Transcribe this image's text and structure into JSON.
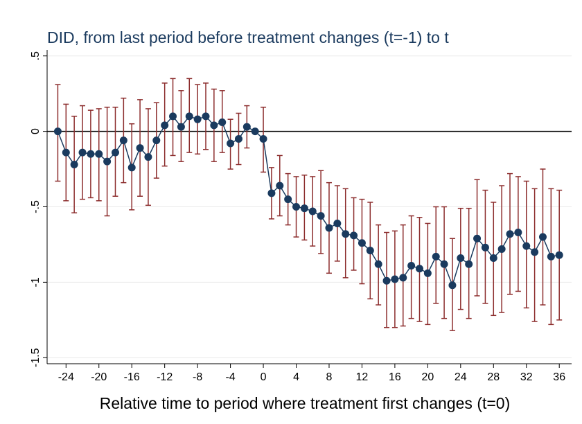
{
  "chart_data": {
    "type": "errorbar-line",
    "title": "DID, from last period before treatment changes (t=-1) to t",
    "x_label": "Relative time to period where treatment first changes (t=0)",
    "x": [
      -25,
      -24,
      -23,
      -22,
      -21,
      -20,
      -19,
      -18,
      -17,
      -16,
      -15,
      -14,
      -13,
      -12,
      -11,
      -10,
      -9,
      -8,
      -7,
      -6,
      -5,
      -4,
      -3,
      -2,
      -1,
      0,
      1,
      2,
      3,
      4,
      5,
      6,
      7,
      8,
      9,
      10,
      11,
      12,
      13,
      14,
      15,
      16,
      17,
      18,
      19,
      20,
      21,
      22,
      23,
      24,
      25,
      26,
      27,
      28,
      29,
      30,
      31,
      32,
      33,
      34,
      35,
      36
    ],
    "values": [
      0,
      -0.14,
      -0.22,
      -0.14,
      -0.15,
      -0.15,
      -0.2,
      -0.14,
      -0.06,
      -0.24,
      -0.11,
      -0.17,
      -0.06,
      0.04,
      0.1,
      0.03,
      0.1,
      0.08,
      0.1,
      0.04,
      0.06,
      -0.08,
      -0.05,
      0.03,
      0,
      -0.05,
      -0.41,
      -0.36,
      -0.45,
      -0.5,
      -0.51,
      -0.53,
      -0.56,
      -0.64,
      -0.61,
      -0.68,
      -0.69,
      -0.74,
      -0.79,
      -0.88,
      -0.99,
      -0.98,
      -0.97,
      -0.89,
      -0.91,
      -0.94,
      -0.83,
      -0.88,
      -1.02,
      -0.84,
      -0.88,
      -0.71,
      -0.77,
      -0.84,
      -0.78,
      -0.68,
      -0.67,
      -0.76,
      -0.8,
      -0.7,
      -0.83,
      -0.82
    ],
    "ci_low": [
      -0.33,
      -0.46,
      -0.54,
      -0.45,
      -0.44,
      -0.46,
      -0.56,
      -0.43,
      -0.34,
      -0.52,
      -0.43,
      -0.49,
      -0.31,
      -0.23,
      -0.16,
      -0.2,
      -0.14,
      -0.15,
      -0.12,
      -0.2,
      -0.14,
      -0.25,
      -0.22,
      -0.11,
      null,
      -0.27,
      -0.58,
      -0.56,
      -0.62,
      -0.7,
      -0.72,
      -0.76,
      -0.81,
      -0.94,
      -0.86,
      -0.97,
      -0.92,
      -1.01,
      -1.11,
      -1.15,
      -1.3,
      -1.3,
      -1.29,
      -1.24,
      -1.26,
      -1.28,
      -1.14,
      -1.24,
      -1.32,
      -1.18,
      -1.24,
      -1.09,
      -1.14,
      -1.22,
      -1.2,
      -1.08,
      -1.06,
      -1.17,
      -1.26,
      -1.15,
      -1.28,
      -1.25
    ],
    "ci_high": [
      0.31,
      0.18,
      0.1,
      0.17,
      0.14,
      0.15,
      0.16,
      0.16,
      0.22,
      0.05,
      0.21,
      0.15,
      0.19,
      0.32,
      0.35,
      0.27,
      0.35,
      0.31,
      0.32,
      0.28,
      0.27,
      0.08,
      0.12,
      0.17,
      null,
      0.16,
      -0.24,
      -0.16,
      -0.28,
      -0.3,
      -0.29,
      -0.3,
      -0.26,
      -0.34,
      -0.36,
      -0.38,
      -0.44,
      -0.45,
      -0.47,
      -0.62,
      -0.67,
      -0.66,
      -0.62,
      -0.56,
      -0.57,
      -0.61,
      -0.5,
      -0.5,
      -0.71,
      -0.51,
      -0.51,
      -0.32,
      -0.39,
      -0.47,
      -0.36,
      -0.28,
      -0.3,
      -0.33,
      -0.38,
      -0.25,
      -0.38,
      -0.39
    ],
    "color": "#1a3a5e",
    "ci_color": "#8c2d2d",
    "xlim": [
      -26.3,
      37.5
    ],
    "ylim": [
      -1.54,
      0.54
    ],
    "xticks": [
      -24,
      -20,
      -16,
      -12,
      -8,
      -4,
      0,
      4,
      8,
      12,
      16,
      20,
      24,
      28,
      32,
      36
    ],
    "yticks": [
      -1.5,
      -1,
      {
        "value": -0.5,
        "label": "-.5"
      },
      0,
      {
        "value": 0.5,
        "label": ".5"
      }
    ],
    "grid": true,
    "zero_line": true
  }
}
